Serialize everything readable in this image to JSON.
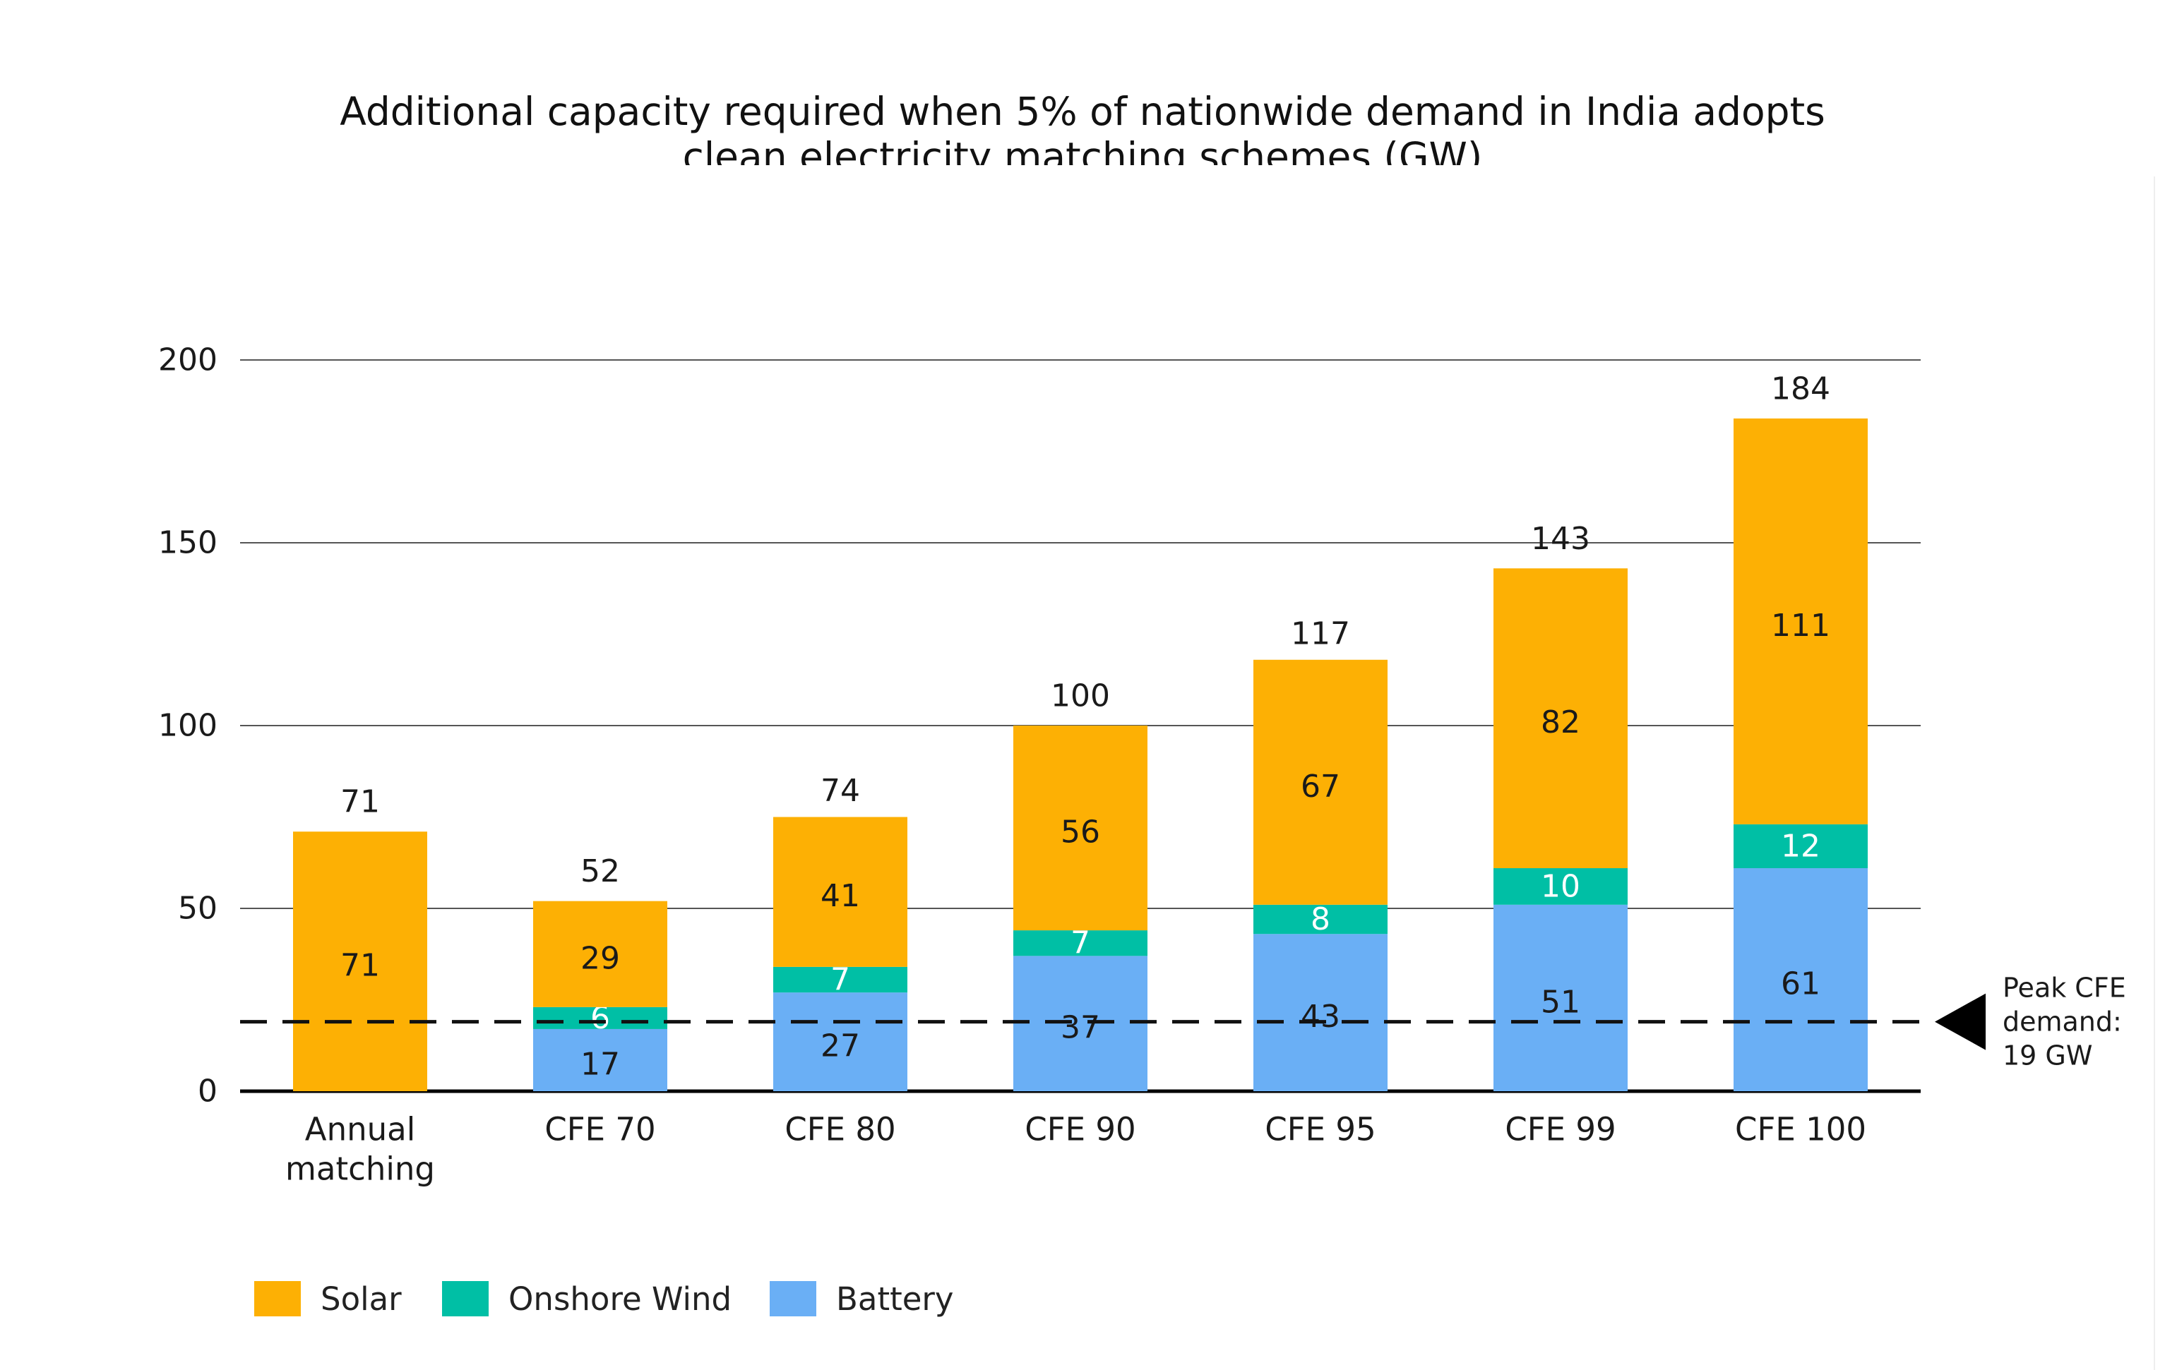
{
  "chart_data": {
    "type": "bar",
    "stacked": true,
    "title_lines": [
      "Additional capacity required when 5% of nationwide demand in India adopts",
      "clean electricity matching schemes (GW)"
    ],
    "categories": [
      "Annual matching",
      "CFE 70",
      "CFE 80",
      "CFE 90",
      "CFE 95",
      "CFE 99",
      "CFE 100"
    ],
    "category_label_lines": [
      [
        "Annual",
        "matching"
      ],
      [
        "CFE 70"
      ],
      [
        "CFE 80"
      ],
      [
        "CFE 90"
      ],
      [
        "CFE 95"
      ],
      [
        "CFE 99"
      ],
      [
        "CFE 100"
      ]
    ],
    "series": [
      {
        "name": "Battery",
        "color": "#6aaff5",
        "values": [
          0,
          17,
          27,
          37,
          43,
          51,
          61
        ]
      },
      {
        "name": "Onshore Wind",
        "color": "#00bfa5",
        "values": [
          0,
          6,
          7,
          7,
          8,
          10,
          12
        ]
      },
      {
        "name": "Solar",
        "color": "#fdb004",
        "values": [
          71,
          29,
          41,
          56,
          67,
          82,
          111
        ]
      }
    ],
    "totals": [
      71,
      52,
      74,
      100,
      117,
      143,
      184
    ],
    "ylim": [
      0,
      200
    ],
    "yticks": [
      0,
      50,
      100,
      150,
      200
    ],
    "grid": true,
    "legend_order": [
      "Solar",
      "Onshore Wind",
      "Battery"
    ],
    "legend_position": "bottom-left",
    "reference_line": {
      "value": 19,
      "label_lines": [
        "Peak CFE",
        "demand:",
        "19 GW"
      ],
      "style": "dashed"
    }
  }
}
